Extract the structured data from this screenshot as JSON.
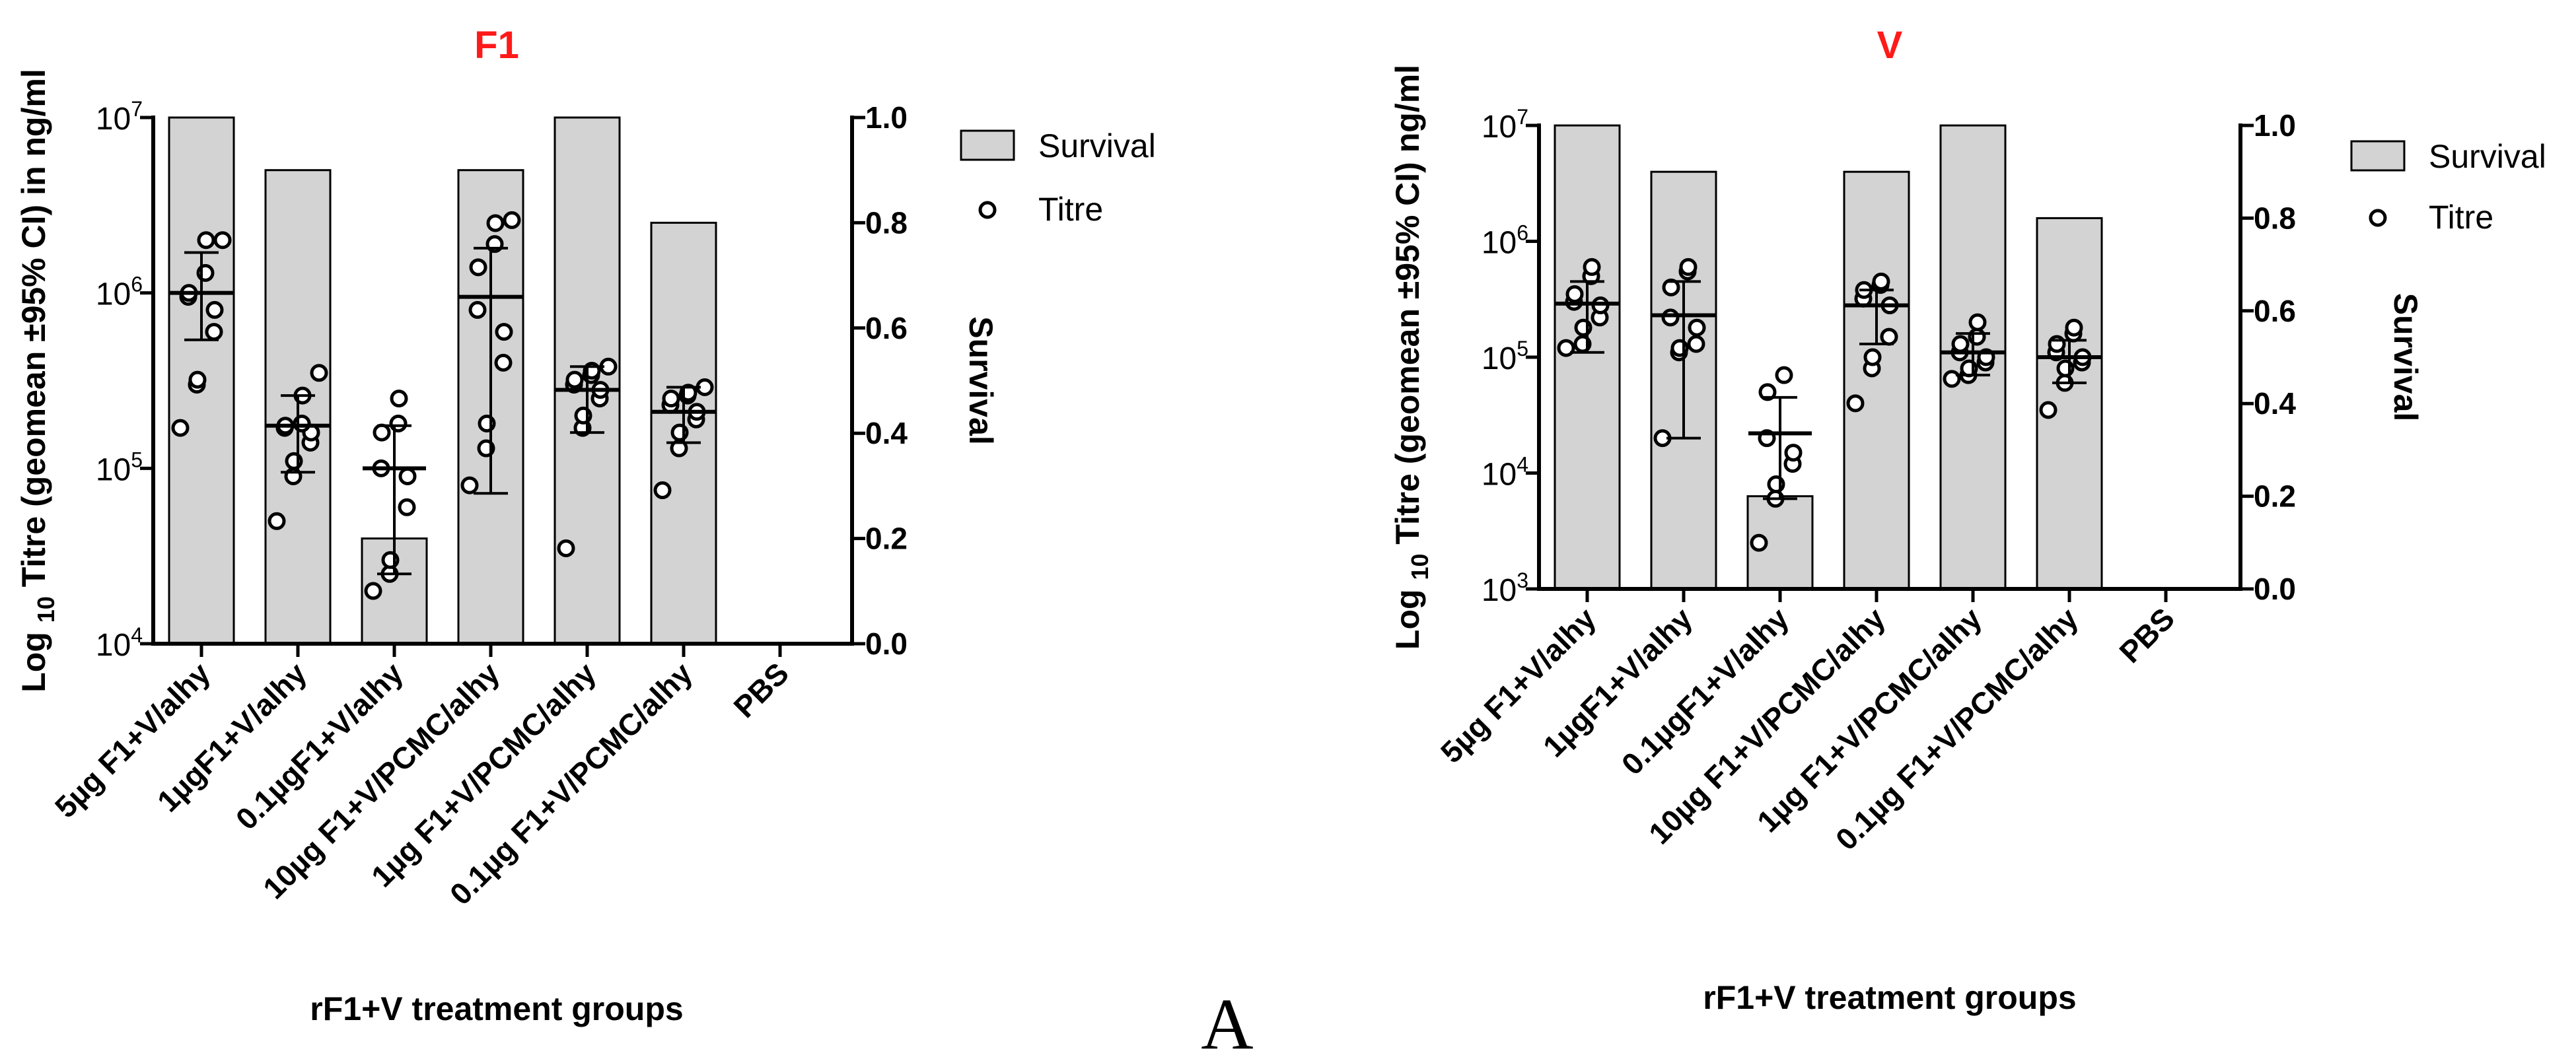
{
  "figure_label": "A",
  "colors": {
    "title": "#ff1a1a",
    "bar_fill": "#d3d3d3",
    "ink": "#000000"
  },
  "chart_data": [
    {
      "type": "bar",
      "title": "F1",
      "xlabel": "rF1+V treatment groups",
      "ylabel_prefix": "Log",
      "ylabel_sub": "10",
      "ylabel_main": "Titre (geomean ±95% CI) in ng/ml",
      "y2label": "Survival",
      "categories": [
        "5µg F1+V/alhy",
        "1µgF1+V/alhy",
        "0.1µgF1+V/alhy",
        "10µg F1+V/PCMC/alhy",
        "1µg F1+V/PCMC/alhy",
        "0.1µg F1+V/PCMC/alhy",
        "PBS"
      ],
      "ylim_log10": [
        4,
        7
      ],
      "y_ticks": [
        {
          "base": "10",
          "exp": "7",
          "v": 7
        },
        {
          "base": "10",
          "exp": "6",
          "v": 6
        },
        {
          "base": "10",
          "exp": "5",
          "v": 5
        },
        {
          "base": "10",
          "exp": "4",
          "v": 4
        }
      ],
      "y2lim": [
        0,
        1
      ],
      "y2_ticks": [
        "1.0",
        "0.8",
        "0.6",
        "0.4",
        "0.2",
        "0.0"
      ],
      "legend": {
        "position": "top-right",
        "survival_label": "Survival",
        "titre_label": "Titre"
      },
      "survival": [
        1.0,
        0.9,
        0.2,
        0.9,
        1.0,
        0.8,
        0.0
      ],
      "titre_geomean": [
        1000000,
        175000,
        100000,
        950000,
        280000,
        210000,
        null
      ],
      "titre_ci": [
        [
          540000,
          1700000
        ],
        [
          95000,
          260000
        ],
        [
          25000,
          175000
        ],
        [
          72000,
          1800000
        ],
        [
          160000,
          380000
        ],
        [
          140000,
          290000
        ],
        null
      ],
      "titre_points": [
        [
          170000,
          300000,
          320000,
          600000,
          800000,
          950000,
          1000000,
          1300000,
          2000000,
          2000000
        ],
        [
          50000,
          90000,
          110000,
          140000,
          160000,
          170000,
          175000,
          180000,
          260000,
          350000
        ],
        [
          20000,
          25000,
          30000,
          60000,
          90000,
          100000,
          160000,
          180000,
          250000
        ],
        [
          80000,
          130000,
          180000,
          400000,
          600000,
          800000,
          1400000,
          1900000,
          2500000,
          2600000
        ],
        [
          35000,
          170000,
          200000,
          250000,
          280000,
          300000,
          320000,
          340000,
          360000,
          380000
        ],
        [
          75000,
          130000,
          160000,
          190000,
          210000,
          230000,
          250000,
          260000,
          270000,
          290000
        ],
        []
      ]
    },
    {
      "type": "bar",
      "title": "V",
      "xlabel": "rF1+V treatment groups",
      "ylabel_prefix": "Log",
      "ylabel_sub": "10",
      "ylabel_main": "Titre (geomean ±95% CI) ng/ml",
      "y2label": "Survival",
      "categories": [
        "5µg F1+V/alhy",
        "1µgF1+V/alhy",
        "0.1µgF1+V/alhy",
        "10µg F1+V/PCMC/alhy",
        "1µg F1+V/PCMC/alhy",
        "0.1µg F1+V/PCMC/alhy",
        "PBS"
      ],
      "ylim_log10": [
        3,
        7
      ],
      "y_ticks": [
        {
          "base": "10",
          "exp": "7",
          "v": 7
        },
        {
          "base": "10",
          "exp": "6",
          "v": 6
        },
        {
          "base": "10",
          "exp": "5",
          "v": 5
        },
        {
          "base": "10",
          "exp": "4",
          "v": 4
        },
        {
          "base": "10",
          "exp": "3",
          "v": 3
        }
      ],
      "y2lim": [
        0,
        1
      ],
      "y2_ticks": [
        "1.0",
        "0.8",
        "0.6",
        "0.4",
        "0.2",
        "0.0"
      ],
      "legend": {
        "position": "top-right",
        "survival_label": "Survival",
        "titre_label": "Titre"
      },
      "survival": [
        1.0,
        0.9,
        0.2,
        0.9,
        1.0,
        0.8,
        0.0
      ],
      "titre_geomean": [
        290000,
        230000,
        22000,
        280000,
        110000,
        100000,
        null
      ],
      "titre_ci": [
        [
          110000,
          450000
        ],
        [
          20000,
          450000
        ],
        [
          6000,
          45000
        ],
        [
          130000,
          380000
        ],
        [
          70000,
          160000
        ],
        [
          60000,
          140000
        ],
        null
      ],
      "titre_points": [
        [
          120000,
          130000,
          180000,
          220000,
          280000,
          300000,
          350000,
          500000,
          600000
        ],
        [
          20000,
          110000,
          120000,
          130000,
          180000,
          220000,
          400000,
          550000,
          600000
        ],
        [
          2500,
          6000,
          8000,
          12000,
          15000,
          20000,
          50000,
          70000
        ],
        [
          40000,
          80000,
          100000,
          150000,
          280000,
          320000,
          380000,
          420000,
          450000
        ],
        [
          65000,
          70000,
          80000,
          90000,
          100000,
          110000,
          130000,
          150000,
          200000
        ],
        [
          35000,
          60000,
          80000,
          90000,
          100000,
          110000,
          130000,
          160000,
          180000
        ]
      ]
    }
  ]
}
